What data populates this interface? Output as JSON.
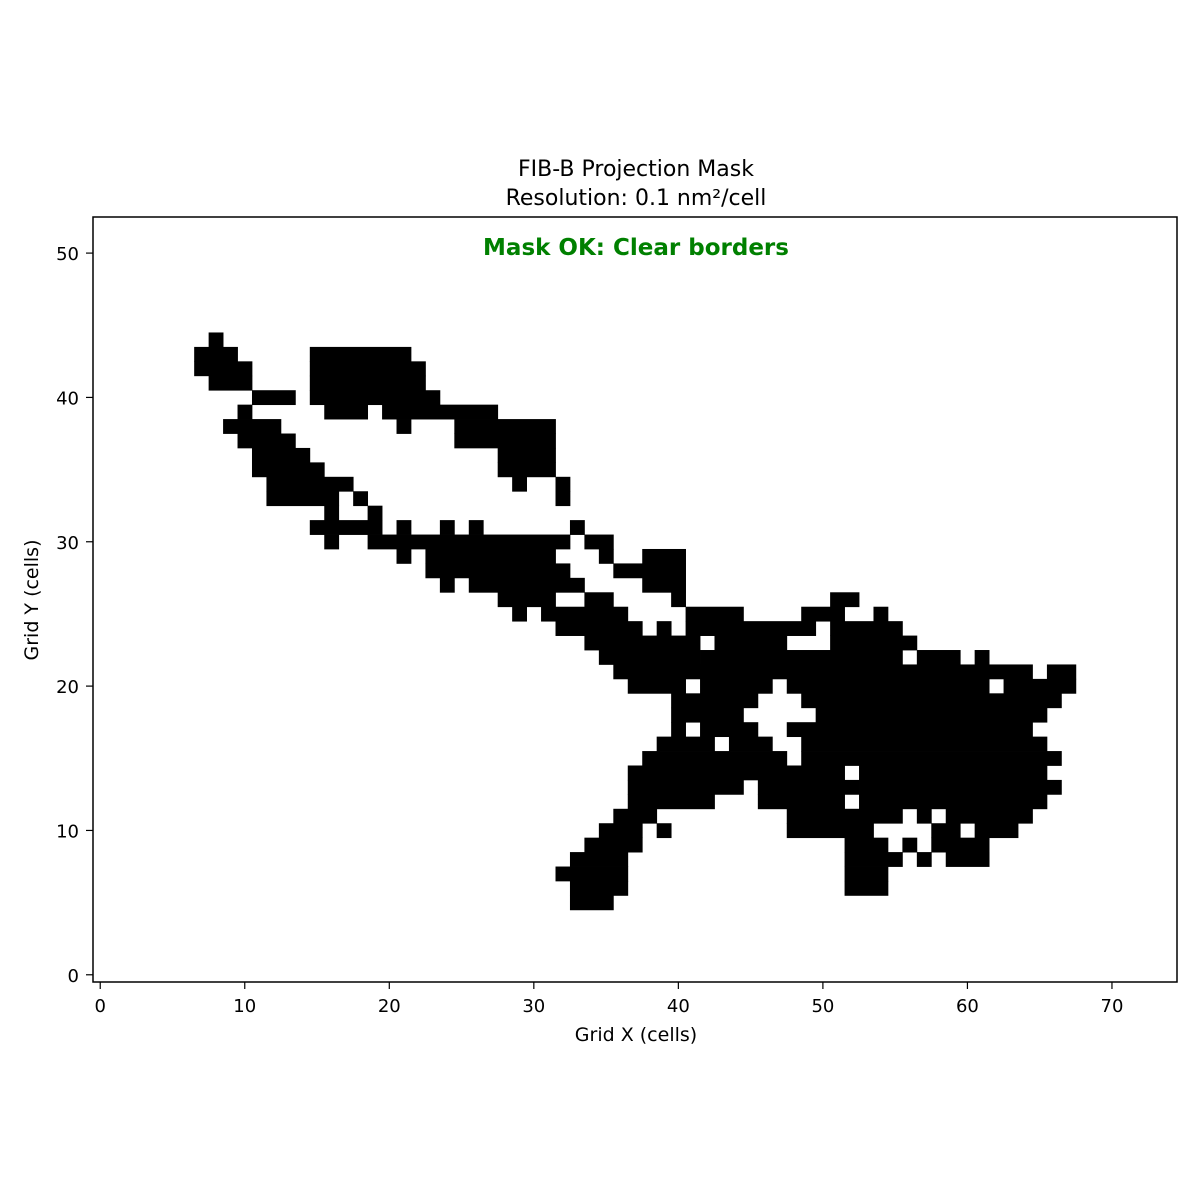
{
  "chart_data": {
    "type": "heatmap",
    "title": "FIB-B Projection Mask",
    "subtitle": "Resolution: 0.1 nm²/cell",
    "xlabel": "Grid X (cells)",
    "ylabel": "Grid Y (cells)",
    "annotation": "Mask OK: Clear borders",
    "annotation_color": "#008000",
    "xlim": [
      -0.5,
      74.5
    ],
    "ylim": [
      -0.5,
      52.5
    ],
    "xticks": [
      0,
      10,
      20,
      30,
      40,
      50,
      60,
      70
    ],
    "yticks": [
      0,
      10,
      20,
      30,
      40,
      50
    ],
    "grid": false,
    "colormap": {
      "filled": "#000000",
      "empty": "#ffffff"
    },
    "filled_runs": [
      {
        "y": 44,
        "x": [
          [
            8,
            8
          ]
        ]
      },
      {
        "y": 43,
        "x": [
          [
            7,
            9
          ],
          [
            15,
            21
          ]
        ]
      },
      {
        "y": 42,
        "x": [
          [
            7,
            10
          ],
          [
            15,
            22
          ]
        ]
      },
      {
        "y": 41,
        "x": [
          [
            8,
            10
          ],
          [
            15,
            22
          ]
        ]
      },
      {
        "y": 40,
        "x": [
          [
            11,
            13
          ],
          [
            15,
            23
          ]
        ]
      },
      {
        "y": 39,
        "x": [
          [
            10,
            10
          ],
          [
            16,
            18
          ],
          [
            20,
            27
          ]
        ]
      },
      {
        "y": 38,
        "x": [
          [
            9,
            12
          ],
          [
            21,
            21
          ],
          [
            25,
            31
          ]
        ]
      },
      {
        "y": 37,
        "x": [
          [
            10,
            13
          ],
          [
            25,
            31
          ]
        ]
      },
      {
        "y": 36,
        "x": [
          [
            11,
            14
          ],
          [
            28,
            31
          ]
        ]
      },
      {
        "y": 35,
        "x": [
          [
            11,
            15
          ],
          [
            28,
            31
          ]
        ]
      },
      {
        "y": 34,
        "x": [
          [
            12,
            17
          ],
          [
            29,
            29
          ],
          [
            32,
            32
          ]
        ]
      },
      {
        "y": 33,
        "x": [
          [
            12,
            16
          ],
          [
            18,
            18
          ],
          [
            32,
            32
          ]
        ]
      },
      {
        "y": 32,
        "x": [
          [
            16,
            16
          ],
          [
            19,
            19
          ]
        ]
      },
      {
        "y": 31,
        "x": [
          [
            15,
            19
          ],
          [
            21,
            21
          ],
          [
            24,
            24
          ],
          [
            26,
            26
          ],
          [
            33,
            33
          ]
        ]
      },
      {
        "y": 30,
        "x": [
          [
            16,
            16
          ],
          [
            19,
            32
          ],
          [
            34,
            35
          ]
        ]
      },
      {
        "y": 29,
        "x": [
          [
            21,
            21
          ],
          [
            23,
            31
          ],
          [
            35,
            35
          ],
          [
            38,
            40
          ]
        ]
      },
      {
        "y": 28,
        "x": [
          [
            23,
            32
          ],
          [
            36,
            40
          ]
        ]
      },
      {
        "y": 27,
        "x": [
          [
            24,
            24
          ],
          [
            26,
            33
          ],
          [
            38,
            40
          ]
        ]
      },
      {
        "y": 26,
        "x": [
          [
            28,
            31
          ],
          [
            34,
            35
          ],
          [
            40,
            40
          ],
          [
            51,
            52
          ]
        ]
      },
      {
        "y": 25,
        "x": [
          [
            29,
            29
          ],
          [
            31,
            36
          ],
          [
            41,
            44
          ],
          [
            49,
            51
          ],
          [
            54,
            54
          ]
        ]
      },
      {
        "y": 24,
        "x": [
          [
            32,
            37
          ],
          [
            39,
            39
          ],
          [
            41,
            49
          ],
          [
            51,
            55
          ]
        ]
      },
      {
        "y": 23,
        "x": [
          [
            34,
            41
          ],
          [
            43,
            47
          ],
          [
            51,
            56
          ]
        ]
      },
      {
        "y": 22,
        "x": [
          [
            35,
            41
          ],
          [
            42,
            55
          ],
          [
            57,
            59
          ],
          [
            61,
            61
          ]
        ]
      },
      {
        "y": 21,
        "x": [
          [
            36,
            64
          ],
          [
            66,
            67
          ]
        ]
      },
      {
        "y": 20,
        "x": [
          [
            37,
            40
          ],
          [
            42,
            46
          ],
          [
            48,
            61
          ],
          [
            63,
            67
          ]
        ]
      },
      {
        "y": 19,
        "x": [
          [
            40,
            45
          ],
          [
            49,
            66
          ]
        ]
      },
      {
        "y": 18,
        "x": [
          [
            40,
            44
          ],
          [
            50,
            65
          ]
        ]
      },
      {
        "y": 17,
        "x": [
          [
            40,
            40
          ],
          [
            42,
            45
          ],
          [
            48,
            64
          ]
        ]
      },
      {
        "y": 16,
        "x": [
          [
            39,
            42
          ],
          [
            44,
            46
          ],
          [
            49,
            65
          ]
        ]
      },
      {
        "y": 15,
        "x": [
          [
            38,
            47
          ],
          [
            49,
            66
          ]
        ]
      },
      {
        "y": 14,
        "x": [
          [
            37,
            51
          ],
          [
            53,
            65
          ]
        ]
      },
      {
        "y": 13,
        "x": [
          [
            37,
            44
          ],
          [
            46,
            52
          ],
          [
            53,
            66
          ]
        ]
      },
      {
        "y": 12,
        "x": [
          [
            37,
            42
          ],
          [
            46,
            51
          ],
          [
            53,
            65
          ]
        ]
      },
      {
        "y": 11,
        "x": [
          [
            36,
            38
          ],
          [
            48,
            55
          ],
          [
            57,
            57
          ],
          [
            59,
            64
          ]
        ]
      },
      {
        "y": 10,
        "x": [
          [
            35,
            37
          ],
          [
            39,
            39
          ],
          [
            48,
            53
          ],
          [
            58,
            59
          ],
          [
            61,
            63
          ]
        ]
      },
      {
        "y": 9,
        "x": [
          [
            34,
            37
          ],
          [
            52,
            54
          ],
          [
            56,
            56
          ],
          [
            58,
            61
          ]
        ]
      },
      {
        "y": 8,
        "x": [
          [
            33,
            36
          ],
          [
            52,
            55
          ],
          [
            57,
            57
          ],
          [
            59,
            61
          ]
        ]
      },
      {
        "y": 7,
        "x": [
          [
            32,
            36
          ],
          [
            52,
            54
          ]
        ]
      },
      {
        "y": 6,
        "x": [
          [
            33,
            36
          ],
          [
            52,
            54
          ]
        ]
      },
      {
        "y": 5,
        "x": [
          [
            33,
            35
          ]
        ]
      }
    ]
  }
}
